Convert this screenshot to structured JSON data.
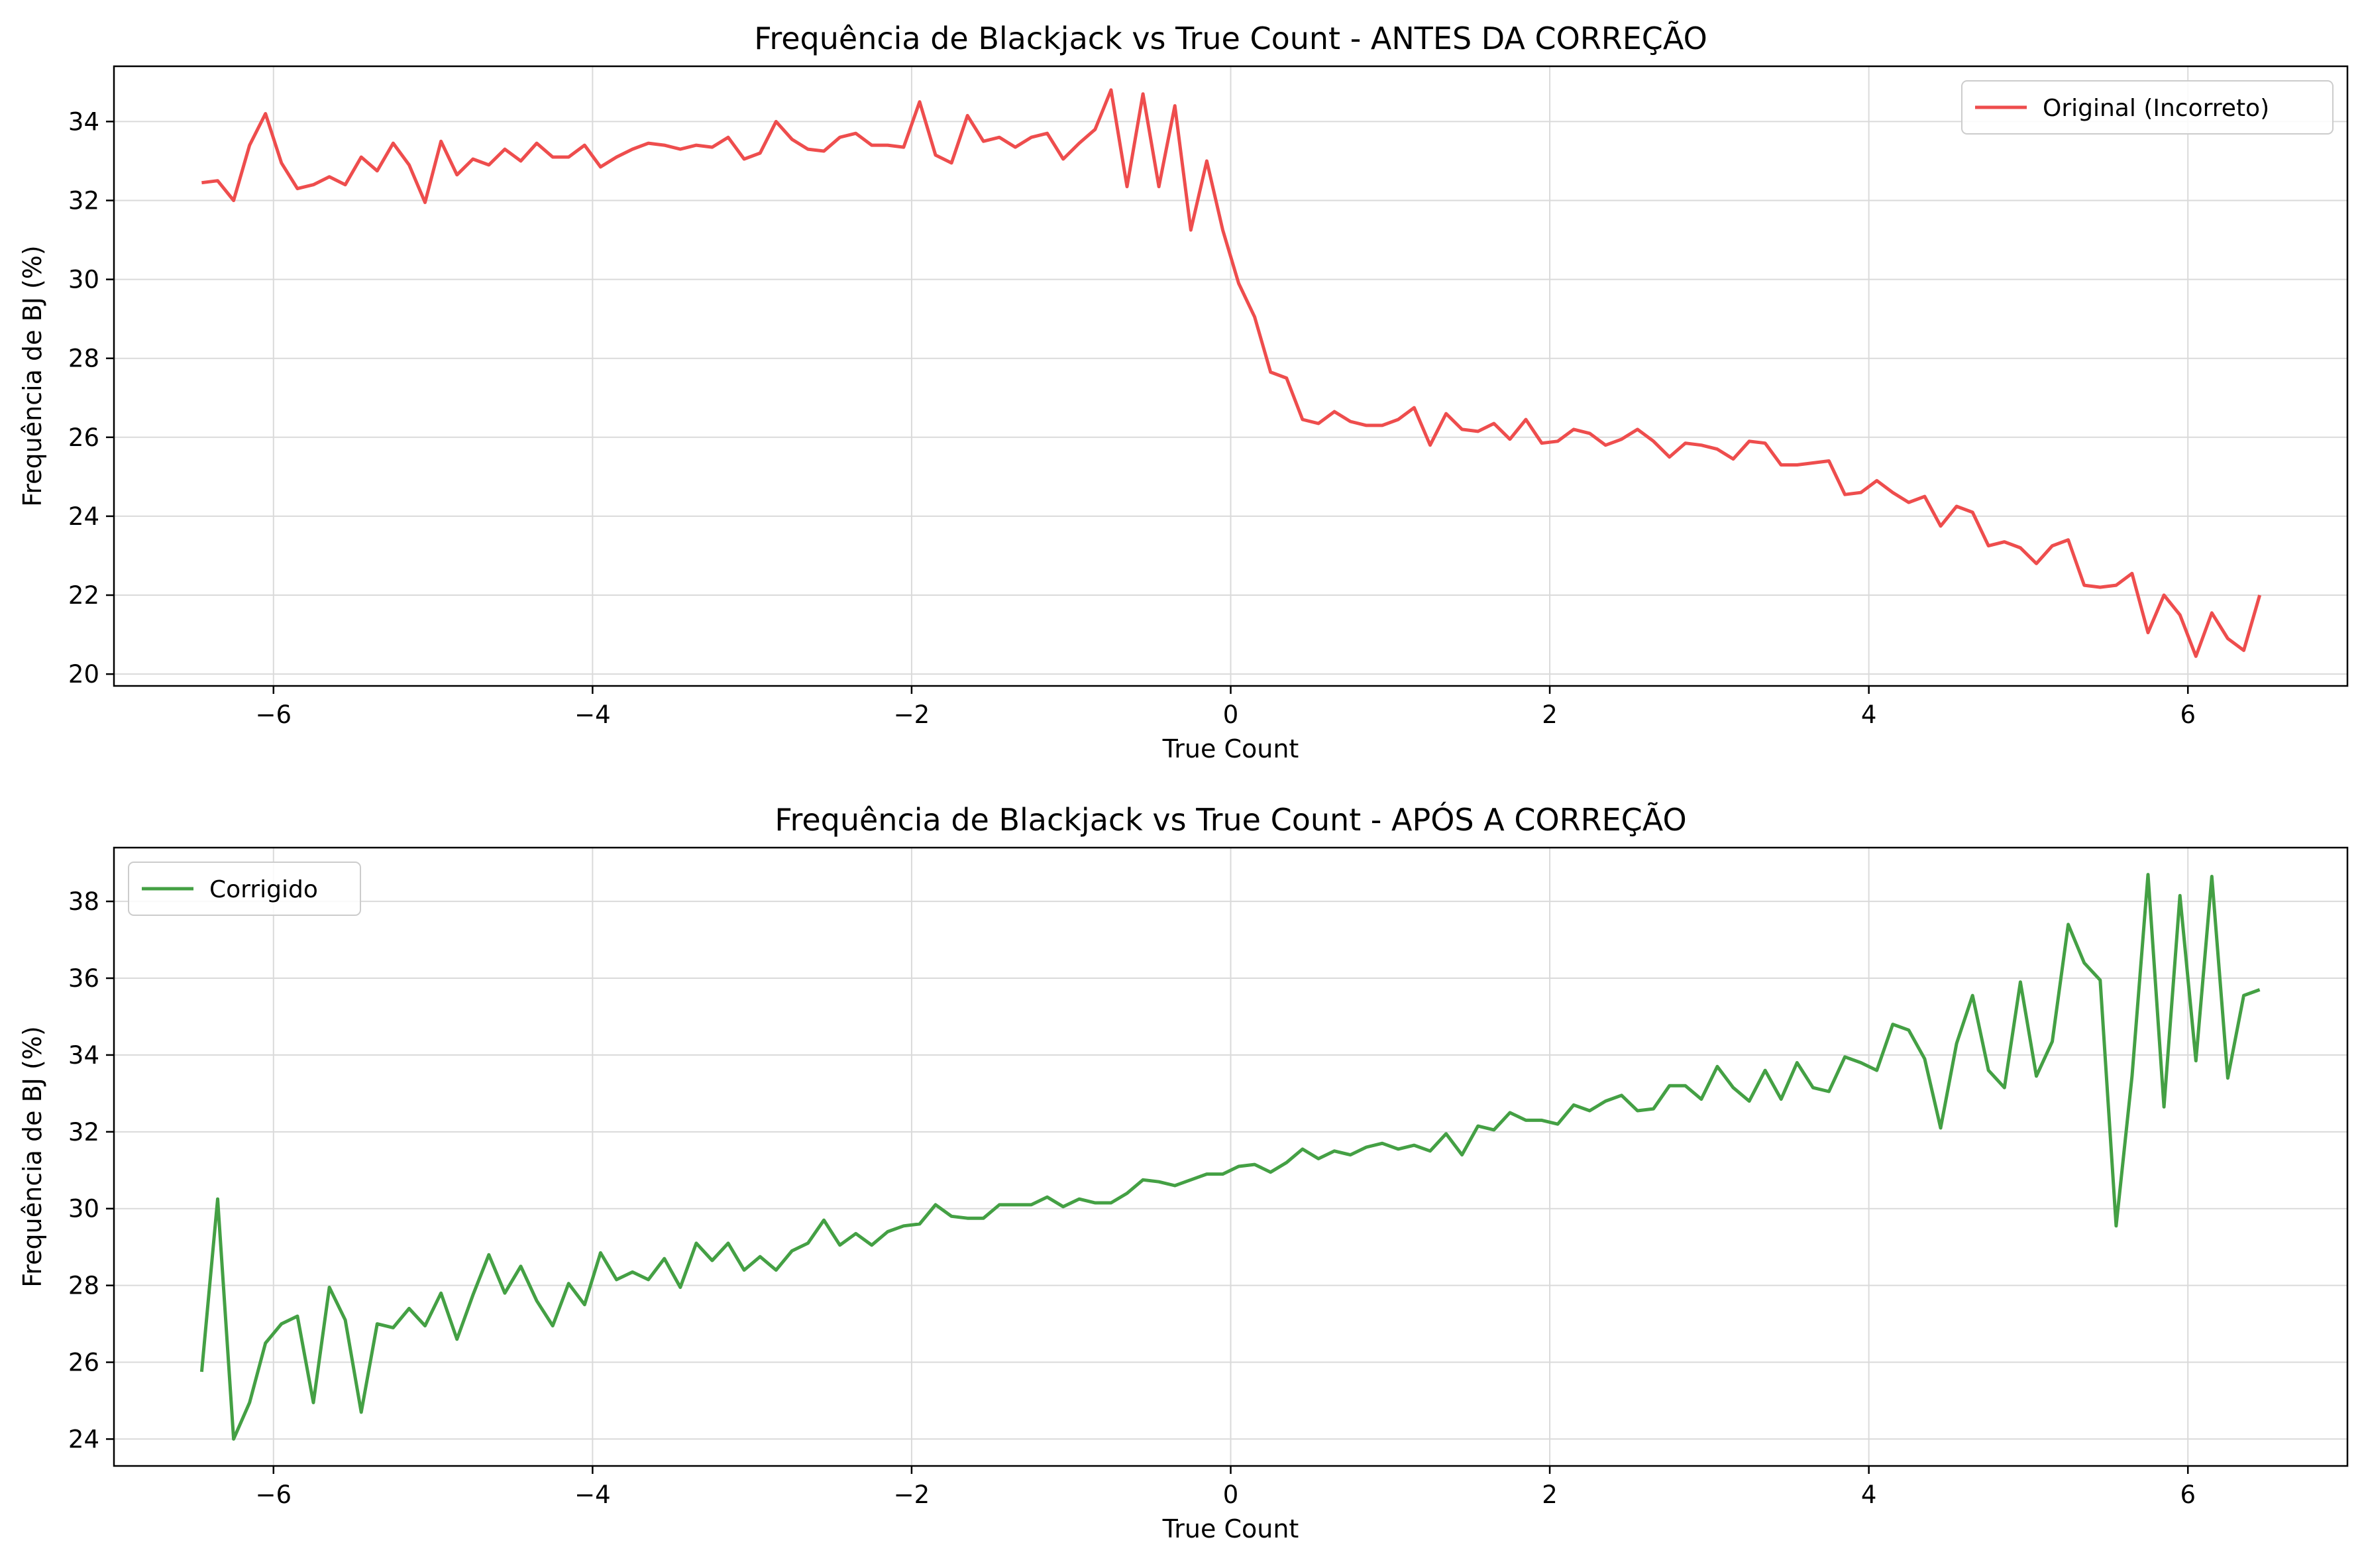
{
  "colors": {
    "original": "#ee4d4d",
    "corrigido": "#44a044",
    "grid": "#dadada",
    "axis": "#000000"
  },
  "chart_data": [
    {
      "type": "line",
      "title": "Frequência de Blackjack vs True Count - ANTES DA CORREÇÃO",
      "xlabel": "True Count",
      "ylabel": "Frequência de BJ (%)",
      "xlim": [
        -7.0,
        7.0
      ],
      "ylim": [
        19.7,
        35.4
      ],
      "xticks": [
        -6,
        -4,
        -2,
        0,
        2,
        4,
        6
      ],
      "xtick_labels": [
        "−6",
        "−4",
        "−2",
        "0",
        "2",
        "4",
        "6"
      ],
      "yticks": [
        20,
        22,
        24,
        26,
        28,
        30,
        32,
        34
      ],
      "ytick_labels": [
        "20",
        "22",
        "24",
        "26",
        "28",
        "30",
        "32",
        "34"
      ],
      "grid": true,
      "legend_position": "upper right",
      "x": {
        "start": -6.45,
        "step": 0.1,
        "count": 130
      },
      "series": [
        {
          "name": "Original (Incorreto)",
          "color": "#ee4d4d",
          "values": [
            32.45,
            32.5,
            32.0,
            33.4,
            34.2,
            32.95,
            32.3,
            32.4,
            32.6,
            32.4,
            33.1,
            32.75,
            33.45,
            32.9,
            31.95,
            33.5,
            32.65,
            33.05,
            32.9,
            33.3,
            33.0,
            33.45,
            33.1,
            33.1,
            33.4,
            32.85,
            33.1,
            33.3,
            33.45,
            33.4,
            33.3,
            33.4,
            33.35,
            33.6,
            33.05,
            33.2,
            34.0,
            33.55,
            33.3,
            33.25,
            33.6,
            33.7,
            33.4,
            33.4,
            33.35,
            34.5,
            33.15,
            32.95,
            34.15,
            33.5,
            33.6,
            33.35,
            33.6,
            33.7,
            33.05,
            33.45,
            33.8,
            34.8,
            32.35,
            34.7,
            32.35,
            34.4,
            31.25,
            33.0,
            31.25,
            29.9,
            29.05,
            27.65,
            27.5,
            26.45,
            26.35,
            26.65,
            26.4,
            26.3,
            26.3,
            26.45,
            26.75,
            25.8,
            26.6,
            26.2,
            26.15,
            26.35,
            25.95,
            26.45,
            25.85,
            25.9,
            26.2,
            26.1,
            25.8,
            25.95,
            26.2,
            25.9,
            25.5,
            25.85,
            25.8,
            25.7,
            25.45,
            25.9,
            25.85,
            25.3,
            25.3,
            25.35,
            25.4,
            24.55,
            24.6,
            24.9,
            24.6,
            24.35,
            24.5,
            23.75,
            24.25,
            24.1,
            23.25,
            23.35,
            23.2,
            22.8,
            23.25,
            23.4,
            22.25,
            22.2,
            22.25,
            22.55,
            21.05,
            22.0,
            21.5,
            20.45,
            21.55,
            20.9,
            20.6,
            22.0
          ]
        }
      ]
    },
    {
      "type": "line",
      "title": "Frequência de Blackjack vs True Count - APÓS A CORREÇÃO",
      "xlabel": "True Count",
      "ylabel": "Frequência de BJ (%)",
      "xlim": [
        -7.0,
        7.0
      ],
      "ylim": [
        23.3,
        39.4
      ],
      "xticks": [
        -6,
        -4,
        -2,
        0,
        2,
        4,
        6
      ],
      "xtick_labels": [
        "−6",
        "−4",
        "−2",
        "0",
        "2",
        "4",
        "6"
      ],
      "yticks": [
        24,
        26,
        28,
        30,
        32,
        34,
        36,
        38
      ],
      "ytick_labels": [
        "24",
        "26",
        "28",
        "30",
        "32",
        "34",
        "36",
        "38"
      ],
      "grid": true,
      "legend_position": "upper left",
      "x": {
        "start": -6.45,
        "step": 0.1,
        "count": 130
      },
      "series": [
        {
          "name": "Corrigido",
          "color": "#44a044",
          "values": [
            25.75,
            30.25,
            24.0,
            24.95,
            26.5,
            27.0,
            27.2,
            24.95,
            27.95,
            27.1,
            24.7,
            27.0,
            26.9,
            27.4,
            26.95,
            27.8,
            26.6,
            27.75,
            28.8,
            27.8,
            28.5,
            27.6,
            26.95,
            28.05,
            27.5,
            28.85,
            28.15,
            28.35,
            28.15,
            28.7,
            27.95,
            29.1,
            28.65,
            29.1,
            28.4,
            28.75,
            28.4,
            28.9,
            29.1,
            29.7,
            29.05,
            29.35,
            29.05,
            29.4,
            29.55,
            29.6,
            30.1,
            29.8,
            29.75,
            29.75,
            30.1,
            30.1,
            30.1,
            30.3,
            30.05,
            30.25,
            30.15,
            30.15,
            30.4,
            30.75,
            30.7,
            30.6,
            30.75,
            30.9,
            30.9,
            31.1,
            31.15,
            30.95,
            31.2,
            31.55,
            31.3,
            31.5,
            31.4,
            31.6,
            31.7,
            31.55,
            31.65,
            31.5,
            31.95,
            31.4,
            32.15,
            32.05,
            32.5,
            32.3,
            32.3,
            32.2,
            32.7,
            32.55,
            32.8,
            32.95,
            32.55,
            32.6,
            33.2,
            33.2,
            32.85,
            33.7,
            33.15,
            32.8,
            33.6,
            32.85,
            33.8,
            33.15,
            33.05,
            33.95,
            33.8,
            33.6,
            34.8,
            34.65,
            33.9,
            32.1,
            34.3,
            35.55,
            33.6,
            33.15,
            35.9,
            33.45,
            34.35,
            37.4,
            36.4,
            35.95,
            29.55,
            33.45,
            38.7,
            32.65,
            38.15,
            33.85,
            38.65,
            33.4,
            35.55,
            35.7
          ]
        }
      ]
    }
  ]
}
